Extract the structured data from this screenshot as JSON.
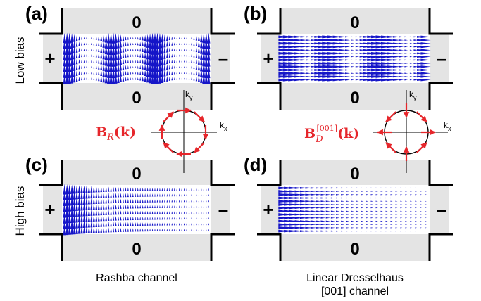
{
  "colors": {
    "vector": "#1515c8",
    "spin": "#e6262b",
    "channel": "#e4e4e4",
    "wire": "#000000"
  },
  "row_labels": {
    "top": "Low bias",
    "bottom": "High bias"
  },
  "panels": [
    {
      "label": "(a)",
      "top_lead": "0",
      "bottom_lead": "0",
      "left_contact": "+",
      "right_contact": "–",
      "pattern": "rashba-low"
    },
    {
      "label": "(b)",
      "top_lead": "0",
      "bottom_lead": "0",
      "left_contact": "+",
      "right_contact": "–",
      "pattern": "dressel-low"
    },
    {
      "label": "(c)",
      "top_lead": "0",
      "bottom_lead": "0",
      "left_contact": "+",
      "right_contact": "–",
      "pattern": "rashba-high"
    },
    {
      "label": "(d)",
      "top_lead": "0",
      "bottom_lead": "0",
      "left_contact": "+",
      "right_contact": "–",
      "pattern": "dressel-high"
    }
  ],
  "insets": {
    "rashba": {
      "field_main": "B",
      "field_sub": "R",
      "field_arg": "(k)",
      "kx": "k",
      "kx_sub": "x",
      "ky": "k",
      "ky_sub": "y"
    },
    "dresselhaus": {
      "field_main": "B",
      "field_sub": "D",
      "field_sup": "[001]",
      "field_arg": "(k)",
      "kx": "k",
      "kx_sub": "x",
      "ky": "k",
      "ky_sub": "y"
    }
  },
  "captions": {
    "left": "Rashba channel",
    "right_line1": "Linear Dresselhaus",
    "right_line2": "[001] channel"
  }
}
